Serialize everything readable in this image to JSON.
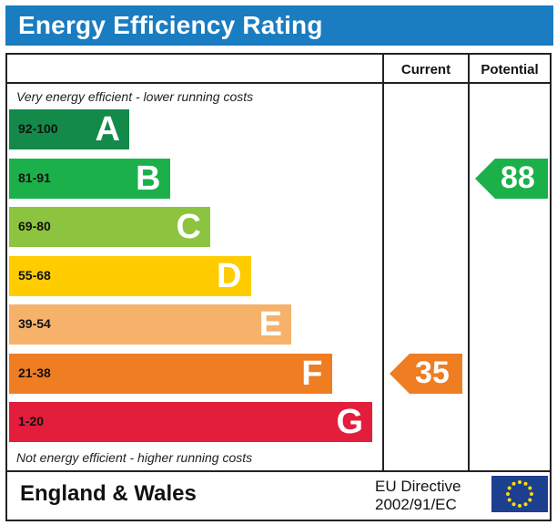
{
  "title": "Energy Efficiency Rating",
  "columns": {
    "current": "Current",
    "potential": "Potential"
  },
  "top_note": "Very energy efficient - lower running costs",
  "bottom_note": "Not energy efficient - higher running costs",
  "footer": {
    "region": "England & Wales",
    "directive_line1": "EU Directive",
    "directive_line2": "2002/91/EC"
  },
  "chart_data": {
    "type": "bar",
    "title": "Energy Efficiency Rating",
    "categories": [
      "A",
      "B",
      "C",
      "D",
      "E",
      "F",
      "G"
    ],
    "bands": [
      {
        "letter": "A",
        "range": "92-100",
        "color": "#138a4a"
      },
      {
        "letter": "B",
        "range": "81-91",
        "color": "#1cb04b"
      },
      {
        "letter": "C",
        "range": "69-80",
        "color": "#8cc43f"
      },
      {
        "letter": "D",
        "range": "55-68",
        "color": "#ffcc00"
      },
      {
        "letter": "E",
        "range": "39-54",
        "color": "#f6b26b"
      },
      {
        "letter": "F",
        "range": "21-38",
        "color": "#ef7d22"
      },
      {
        "letter": "G",
        "range": "1-20",
        "color": "#e31d3c"
      }
    ],
    "current": {
      "value": 35,
      "band": "F",
      "color": "#ef7d22"
    },
    "potential": {
      "value": 88,
      "band": "B",
      "color": "#1cb04b"
    }
  }
}
